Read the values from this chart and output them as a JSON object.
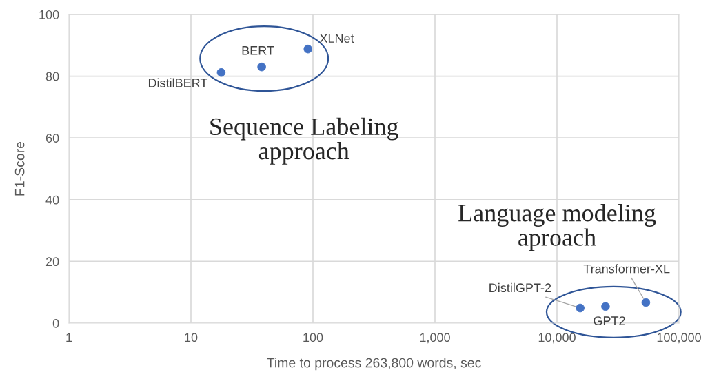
{
  "chart_data": {
    "type": "scatter",
    "xlabel": "Time to process 263,800 words, sec",
    "ylabel": "F1-Score",
    "log": "x",
    "xlim": [
      1,
      100000
    ],
    "ylim": [
      0,
      100
    ],
    "xticks": [
      1,
      10,
      100,
      {
        "value": 1000,
        "label": "1,000"
      },
      {
        "value": 10000,
        "label": "10,000"
      },
      {
        "value": 100000,
        "label": "100,000"
      }
    ],
    "yticks": [
      0,
      20,
      40,
      60,
      80,
      100
    ],
    "grid": true,
    "marker": "circle",
    "series": [
      {
        "color": "#4472c4",
        "x": [
          17.7,
          38,
          91
        ],
        "values": [
          81.2,
          83,
          88.8
        ]
      },
      {
        "color": "#4472c4",
        "x": [
          15500,
          25000,
          53500
        ],
        "values": [
          4.9,
          5.4,
          6.7
        ]
      }
    ],
    "annotations": [
      {
        "text": "DistilBERT",
        "x": 17.7,
        "y": 81.2
      },
      {
        "text": "BERT",
        "x": 38,
        "y": 83
      },
      {
        "text": "XLNet",
        "x": 91,
        "y": 88.8
      },
      {
        "text": "DistilGPT-2",
        "x": 15500,
        "y": 4.9
      },
      {
        "text": "GPT2",
        "x": 25000,
        "y": 5.4
      },
      {
        "text": "Transformer-XL",
        "x": 53500,
        "y": 6.7
      },
      "Sequence Labeling\napproach",
      "Language modeling\naproach"
    ]
  }
}
